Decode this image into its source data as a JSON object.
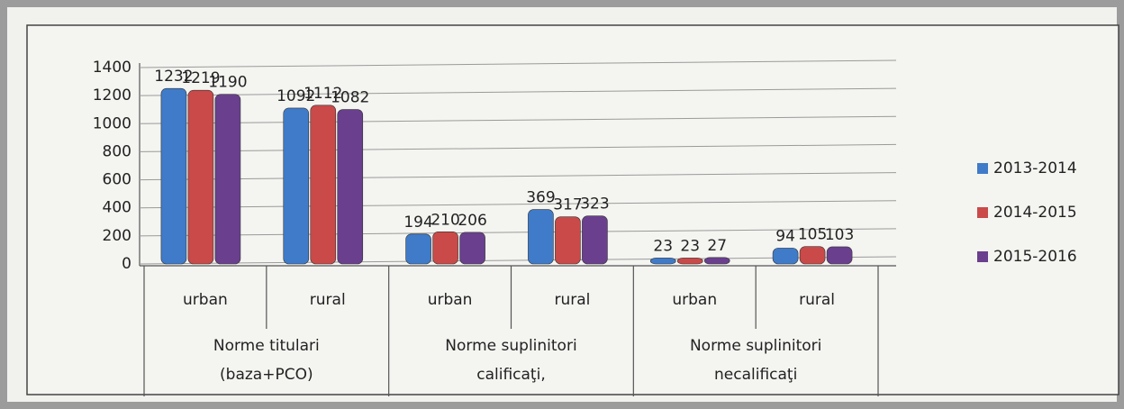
{
  "chart_data": {
    "type": "bar",
    "categories": [
      "urban",
      "rural",
      "urban",
      "rural",
      "urban",
      "rural"
    ],
    "groups": [
      {
        "lines": [
          "Norme titulari",
          "(baza+PCO)"
        ]
      },
      {
        "lines": [
          "Norme suplinitori",
          "calificaţi,"
        ]
      },
      {
        "lines": [
          "Norme suplinitori",
          "necalificaţi"
        ]
      }
    ],
    "series": [
      {
        "name": "2013-2014",
        "color": "#3f7bc9",
        "values": [
          1232,
          1092,
          194,
          369,
          23,
          94
        ]
      },
      {
        "name": "2014-2015",
        "color": "#c94a48",
        "values": [
          1219,
          1112,
          210,
          317,
          23,
          105
        ]
      },
      {
        "name": "2015-2016",
        "color": "#6a3f8e",
        "values": [
          1190,
          1082,
          206,
          323,
          27,
          103
        ]
      }
    ],
    "ylim": [
      0,
      1400
    ],
    "yticks": [
      0,
      200,
      400,
      600,
      800,
      1000,
      1200,
      1400
    ],
    "grid": true,
    "legend": "right"
  }
}
